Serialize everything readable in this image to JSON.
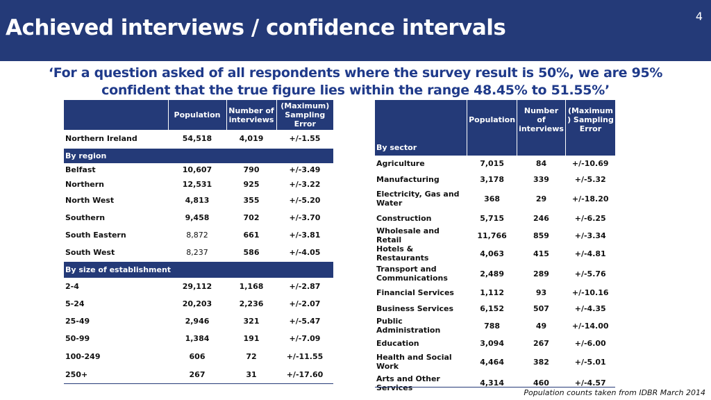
{
  "slide": {
    "title": "Achieved interviews / confidence intervals",
    "number": "4",
    "quote_line1": "‘For a question asked of all respondents where the survey result is 50%, we are 95%",
    "quote_line2": "confident that the true figure lies within the range 48.45% to 51.55%’",
    "footnote": "Population counts taken from IDBR March 2014"
  },
  "left_table": {
    "headers": {
      "population": "Population",
      "interviews_1": "Number of",
      "interviews_2": "interviews",
      "error_1": "(Maximum)",
      "error_2": "Sampling",
      "error_3": "Error"
    },
    "total": {
      "label": "Northern Ireland",
      "population": "54,518",
      "interviews": "4,019",
      "error": "+/-1.55"
    },
    "region_heading": "By region",
    "regions": [
      {
        "label": "Belfast",
        "population": "10,607",
        "interviews": "790",
        "error": "+/-3.49"
      },
      {
        "label": "Northern",
        "population": "12,531",
        "interviews": "925",
        "error": "+/-3.22"
      },
      {
        "label": "North West",
        "population": "4,813",
        "interviews": "355",
        "error": "+/-5.20"
      },
      {
        "label": "Southern",
        "population": "9,458",
        "interviews": "702",
        "error": "+/-3.70"
      },
      {
        "label": "South Eastern",
        "population": "8,872",
        "interviews": "661",
        "error": "+/-3.81"
      },
      {
        "label": "South West",
        "population": "8,237",
        "interviews": "586",
        "error": "+/-4.05"
      }
    ],
    "size_heading": "By size of establishment",
    "sizes": [
      {
        "label": "2-4",
        "population": "29,112",
        "interviews": "1,168",
        "error": "+/-2.87"
      },
      {
        "label": "5-24",
        "population": "20,203",
        "interviews": "2,236",
        "error": "+/-2.07"
      },
      {
        "label": "25-49",
        "population": "2,946",
        "interviews": "321",
        "error": "+/-5.47"
      },
      {
        "label": "50-99",
        "population": "1,384",
        "interviews": "191",
        "error": "+/-7.09"
      },
      {
        "label": "100-249",
        "population": "606",
        "interviews": "72",
        "error": "+/-11.55"
      },
      {
        "label": "250+",
        "population": "267",
        "interviews": "31",
        "error": "+/-17.60"
      }
    ]
  },
  "right_table": {
    "headers": {
      "population": "Population",
      "interviews_1": "Number of",
      "interviews_2": "interviews",
      "error_1": "(Maximum",
      "error_2": ") Sampling",
      "error_3": "Error"
    },
    "sector_heading": "By sector",
    "sectors": [
      {
        "label": "Agriculture",
        "population": "7,015",
        "interviews": "84",
        "error": "+/-10.69"
      },
      {
        "label": "Manufacturing",
        "population": "3,178",
        "interviews": "339",
        "error": "+/-5.32"
      },
      {
        "label": "Electricity, Gas and Water",
        "population": "368",
        "interviews": "29",
        "error": "+/-18.20"
      },
      {
        "label": "Construction",
        "population": "5,715",
        "interviews": "246",
        "error": "+/-6.25"
      },
      {
        "label": "Wholesale and Retail",
        "population": "11,766",
        "interviews": "859",
        "error": "+/-3.34"
      },
      {
        "label": "Hotels & Restaurants",
        "population": "4,063",
        "interviews": "415",
        "error": "+/-4.81"
      },
      {
        "label": "Transport and Communications",
        "population": "2,489",
        "interviews": "289",
        "error": "+/-5.76"
      },
      {
        "label": "Financial Services",
        "population": "1,112",
        "interviews": "93",
        "error": "+/-10.16"
      },
      {
        "label": "Business Services",
        "population": "6,152",
        "interviews": "507",
        "error": "+/-4.35"
      },
      {
        "label": "Public Administration",
        "population": "788",
        "interviews": "49",
        "error": "+/-14.00"
      },
      {
        "label": "Education",
        "population": "3,094",
        "interviews": "267",
        "error": "+/-6.00"
      },
      {
        "label": "Health and Social Work",
        "population": "4,464",
        "interviews": "382",
        "error": "+/-5.01"
      },
      {
        "label": "Arts and Other Services",
        "population": "4,314",
        "interviews": "460",
        "error": "+/-4.57"
      }
    ]
  }
}
